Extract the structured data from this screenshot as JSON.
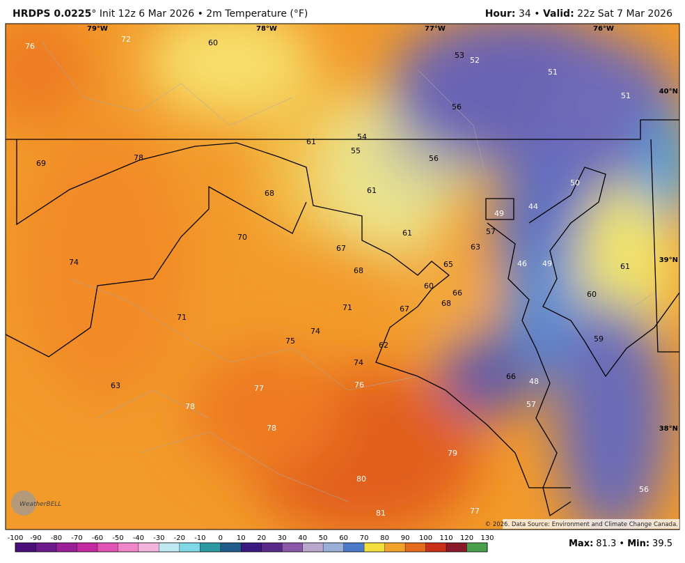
{
  "header": {
    "model": "HRDPS 0.0225",
    "degree": "°",
    "title": " Init 12z 6 Mar 2026 • 2m Temperature (°F)",
    "hour_label": "Hour:",
    "hour": " 34 • ",
    "valid_label": "Valid:",
    "valid": " 22z Sat 7 Mar 2026"
  },
  "map": {
    "lon_labels": [
      "79°W",
      "78°W",
      "77°W",
      "76°W"
    ],
    "lat_labels": [
      "40°N",
      "39°N",
      "38°N"
    ],
    "labels": [
      76,
      72,
      60,
      53,
      52,
      51,
      51,
      56,
      54,
      61,
      55,
      56,
      69,
      78,
      68,
      61,
      50,
      44,
      49,
      57,
      61,
      70,
      67,
      63,
      74,
      68,
      65,
      46,
      49,
      61,
      60,
      66,
      68,
      60,
      71,
      67,
      71,
      74,
      75,
      59,
      62,
      74,
      66,
      48,
      63,
      77,
      76,
      78,
      57,
      78,
      79,
      80,
      56,
      81,
      77
    ],
    "copyright": "© 2026. Data Source: Environment and Climate Change Canada.",
    "logo": "WeatherBELL"
  },
  "colorbar": {
    "ticks": [
      -100,
      -90,
      -80,
      -70,
      -60,
      -50,
      -40,
      -30,
      -20,
      -10,
      0,
      10,
      20,
      30,
      40,
      50,
      60,
      70,
      80,
      90,
      100,
      110,
      120,
      130
    ]
  },
  "footer": {
    "max_label": "Max:",
    "max": 81.3,
    "sep": " • ",
    "min_label": "Min:",
    "min": 39.5
  }
}
